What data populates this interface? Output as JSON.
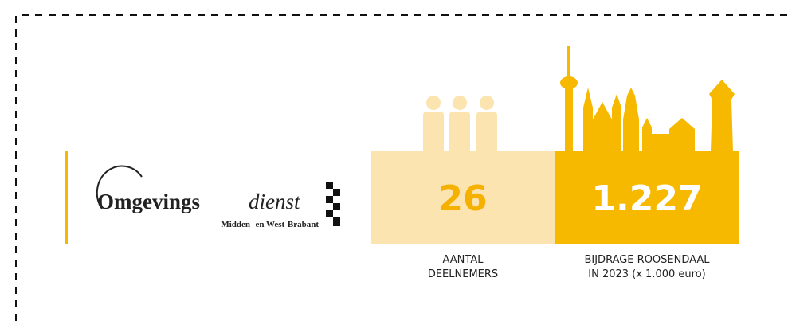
{
  "logo": {
    "name_bold": "Omgevings",
    "name_italic": "dienst",
    "region": "Midden- en West-Brabant"
  },
  "stats": [
    {
      "value": "26",
      "label_lines": [
        "AANTAL",
        "DEELNEMERS"
      ]
    },
    {
      "value": "1.227",
      "label_lines": [
        "BIJDRAGE ROOSENDAAL",
        "IN 2023 (x 1.000 euro)"
      ]
    }
  ]
}
